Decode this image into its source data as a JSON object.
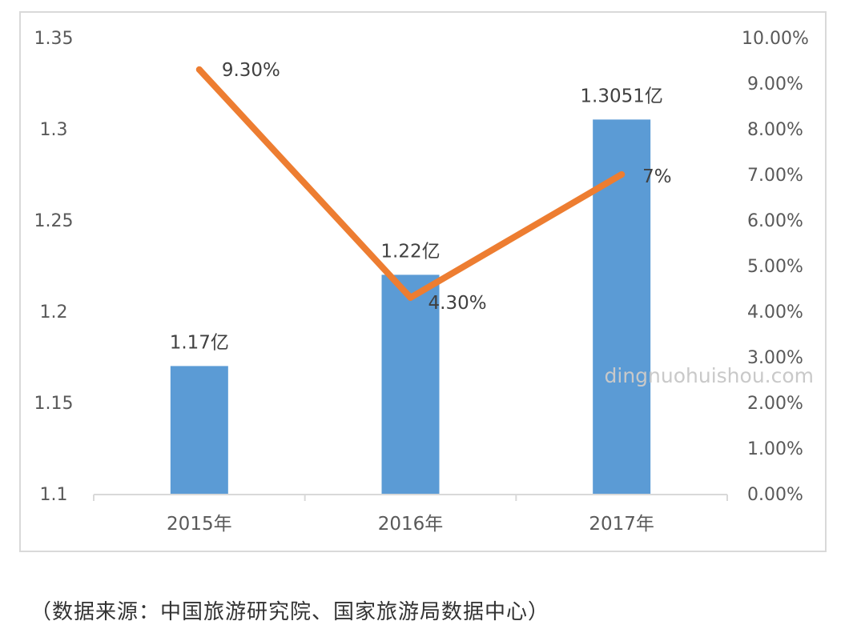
{
  "chart_data": {
    "type": "bar",
    "categories": [
      "2015年",
      "2016年",
      "2017年"
    ],
    "series": [
      {
        "type": "bar",
        "axis": "left",
        "color": "#5b9bd5",
        "values": [
          1.17,
          1.22,
          1.3051
        ],
        "labels": [
          "1.17亿",
          "1.22亿",
          "1.3051亿"
        ]
      },
      {
        "type": "line",
        "axis": "right",
        "color": "#ed7d31",
        "values": [
          9.3,
          4.3,
          7.0
        ],
        "labels": [
          "9.30%",
          "4.30%",
          "7%"
        ]
      }
    ],
    "left_axis": {
      "ylim": [
        1.1,
        1.35
      ],
      "ticks": [
        "1.1",
        "1.15",
        "1.2",
        "1.25",
        "1.3",
        "1.35"
      ]
    },
    "right_axis": {
      "ylim": [
        0,
        10
      ],
      "ticks": [
        "0.00%",
        "1.00%",
        "2.00%",
        "3.00%",
        "4.00%",
        "5.00%",
        "6.00%",
        "7.00%",
        "8.00%",
        "9.00%",
        "10.00%"
      ]
    },
    "grid": false,
    "legend": "none"
  },
  "watermark": "dingnuohuishou.com",
  "source_note": "（数据来源：中国旅游研究院、国家旅游局数据中心）"
}
